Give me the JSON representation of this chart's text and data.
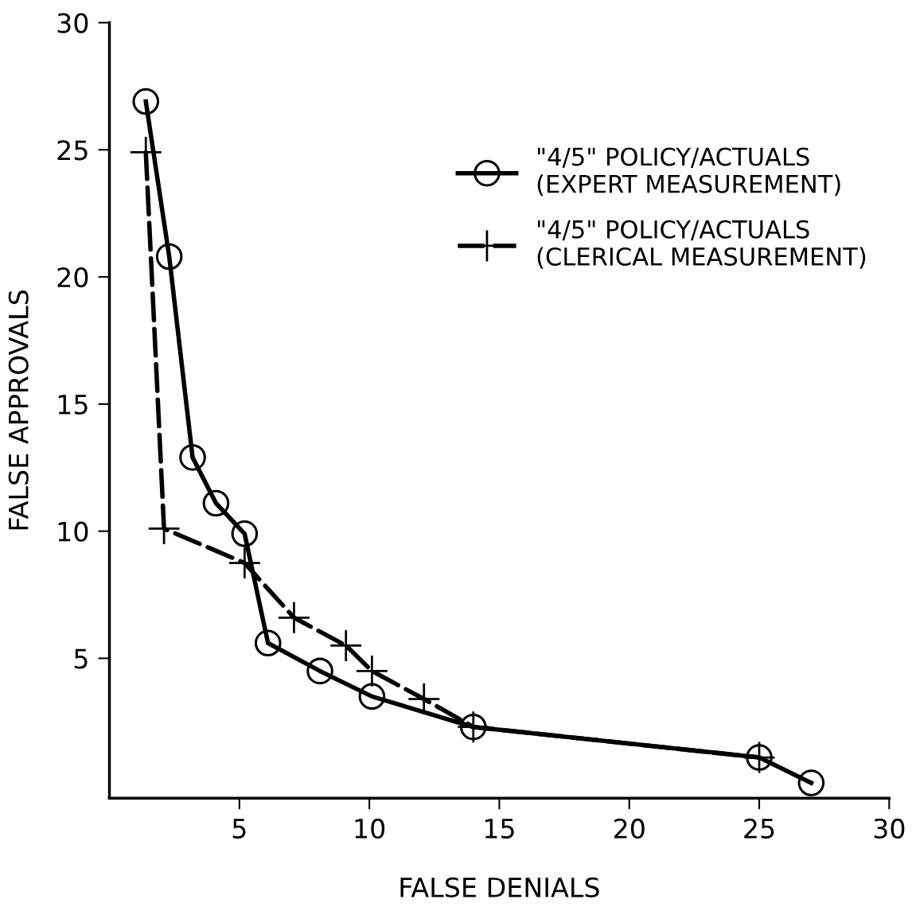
{
  "chart_data": {
    "type": "line",
    "xlabel": "FALSE DENIALS",
    "ylabel": "FALSE APPROVALS",
    "xlim": [
      0,
      30
    ],
    "ylim": [
      -0.5,
      30
    ],
    "xticks": [
      5,
      10,
      15,
      20,
      25,
      30
    ],
    "yticks": [
      5,
      10,
      15,
      20,
      25,
      30
    ],
    "grid": false,
    "legend": "right",
    "series": [
      {
        "name": "\"4/5\" POLICY/ACTUALS\n(EXPERT MEASUREMENT)",
        "color": "#000000",
        "marker": "circle",
        "line_style": "solid",
        "x": [
          1.4,
          2.3,
          3.2,
          4.1,
          5.2,
          6.1,
          8.1,
          10.1,
          14.0,
          25.0,
          27.0
        ],
        "values": [
          26.9,
          20.8,
          12.9,
          11.1,
          9.9,
          5.6,
          4.5,
          3.5,
          2.3,
          1.1,
          0.1
        ]
      },
      {
        "name": "\"4/5\" POLICY/ACTUALS\n(CLERICAL MEASUREMENT)",
        "color": "#000000",
        "marker": "cross",
        "line_style": "dashed",
        "x": [
          1.4,
          2.1,
          5.2,
          7.1,
          9.1,
          10.1,
          12.1,
          14.0,
          25.0
        ],
        "values": [
          24.9,
          10.1,
          8.75,
          6.6,
          5.5,
          4.5,
          3.4,
          2.3,
          1.1
        ]
      }
    ]
  }
}
